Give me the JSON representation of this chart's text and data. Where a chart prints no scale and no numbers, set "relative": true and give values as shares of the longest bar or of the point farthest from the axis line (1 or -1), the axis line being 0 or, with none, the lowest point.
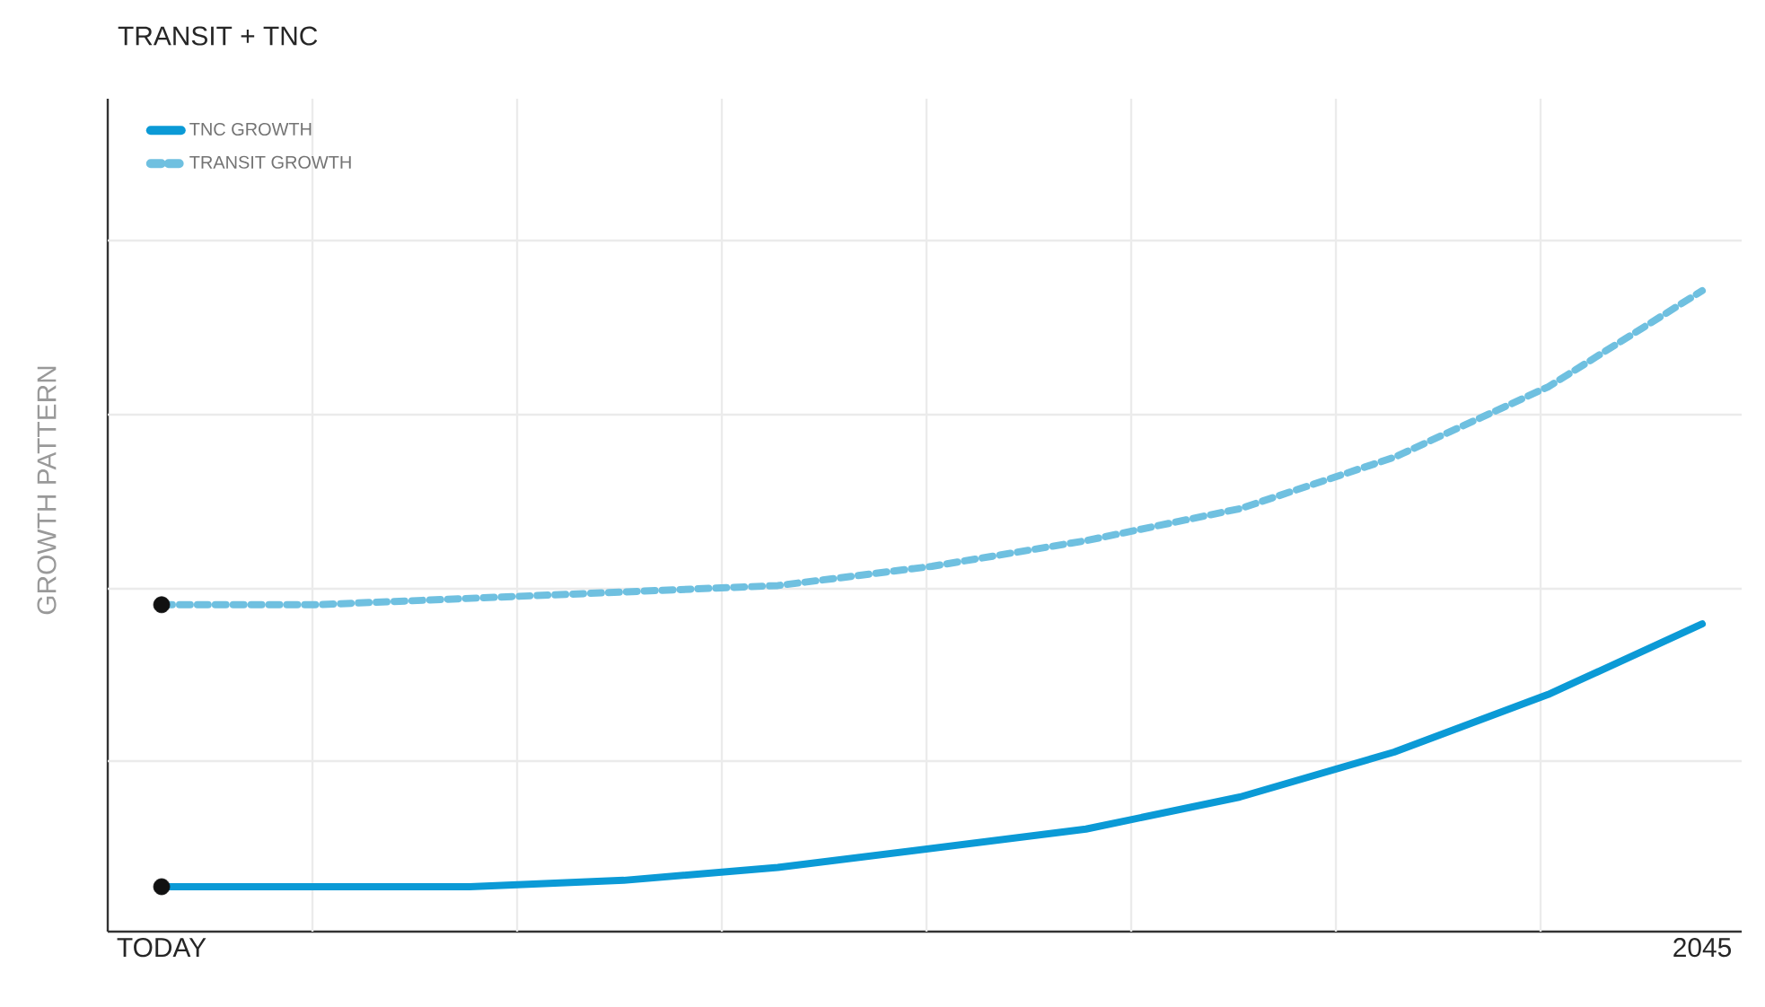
{
  "chart_data": {
    "type": "line",
    "title": "TRANSIT + TNC",
    "ylabel": "GROWTH PATTERN",
    "relative": true,
    "grid": true,
    "legend": "top left",
    "categories": [
      "TODAY",
      null,
      null,
      null,
      null,
      null,
      null,
      null,
      null,
      null,
      "2045"
    ],
    "series": [
      {
        "name": "TNC GROWTH",
        "color": "#0b9ad6",
        "line_style": "solid",
        "values": [
          0.07,
          0.07,
          0.07,
          0.08,
          0.1,
          0.13,
          0.16,
          0.21,
          0.28,
          0.37,
          0.48
        ]
      },
      {
        "name": "TRANSIT GROWTH",
        "color": "#6fc0e0",
        "line_style": "dashed",
        "values": [
          0.51,
          0.51,
          0.52,
          0.53,
          0.54,
          0.57,
          0.61,
          0.66,
          0.74,
          0.85,
          1
        ]
      },
      {
        "type": "scatter",
        "color": "#111111",
        "x": [
          "TODAY",
          "TODAY"
        ],
        "values": [
          0.07,
          0.51
        ]
      }
    ]
  }
}
